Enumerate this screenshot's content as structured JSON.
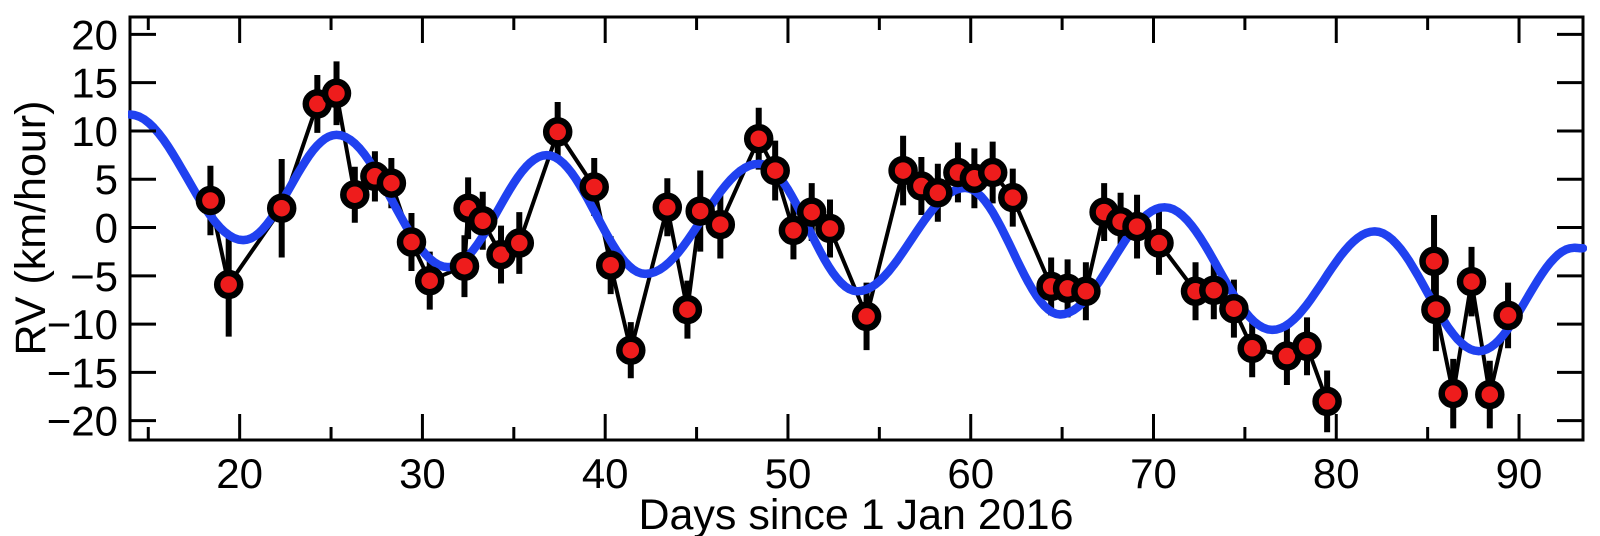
{
  "chart_data": {
    "type": "scatter",
    "subtype": "time-series with error bars and model curve",
    "title": "",
    "xlabel": "Days since 1 Jan 2016",
    "ylabel": "RV (km/hour)",
    "xlim": [
      14,
      93.5
    ],
    "ylim": [
      -22,
      21.8
    ],
    "grid": false,
    "legend": "none",
    "x_major_ticks": [
      20,
      30,
      40,
      50,
      60,
      70,
      80,
      90
    ],
    "x_tick_labels": [
      "20",
      "30",
      "40",
      "50",
      "60",
      "70",
      "80",
      "90"
    ],
    "x_minor_ticks": [
      15,
      25,
      35,
      45,
      55,
      65,
      75,
      85
    ],
    "y_major_ticks": [
      20,
      15,
      10,
      5,
      0,
      -5,
      -10,
      -15,
      -20
    ],
    "y_tick_labels": [
      "20",
      "15",
      "10",
      "5",
      "0",
      "−5",
      "−10",
      "−15",
      "−20"
    ],
    "colors": {
      "data_point_fill": "#ee1c1c",
      "data_point_edge": "#000000",
      "error_bar": "#000000",
      "connecting_line": "#000000",
      "model_curve": "#2041f0",
      "axis": "#000000",
      "background": "#ffffff"
    },
    "series": [
      {
        "name": "observed-rv-segment-1",
        "points": [
          {
            "day": 18.4,
            "rv": 2.8,
            "err": 3.6
          },
          {
            "day": 19.4,
            "rv": -5.9,
            "err": 5.4
          },
          {
            "day": 22.3,
            "rv": 2.0,
            "err": 5.1
          },
          {
            "day": 24.25,
            "rv": 12.8,
            "err": 3.0
          },
          {
            "day": 25.3,
            "rv": 13.9,
            "err": 3.3
          },
          {
            "day": 26.3,
            "rv": 3.4,
            "err": 2.9
          },
          {
            "day": 27.4,
            "rv": 5.3,
            "err": 2.6
          },
          {
            "day": 28.3,
            "rv": 4.6,
            "err": 2.6
          },
          {
            "day": 29.4,
            "rv": -1.5,
            "err": 3.0
          },
          {
            "day": 30.4,
            "rv": -5.5,
            "err": 3.0
          },
          {
            "day": 32.3,
            "rv": -4.0,
            "err": 3.2
          },
          {
            "day": 32.5,
            "rv": 2.0,
            "err": 3.2
          },
          {
            "day": 33.3,
            "rv": 0.7,
            "err": 3.0
          },
          {
            "day": 34.3,
            "rv": -2.8,
            "err": 3.0
          },
          {
            "day": 35.3,
            "rv": -1.6,
            "err": 3.2
          },
          {
            "day": 37.4,
            "rv": 9.9,
            "err": 3.1
          },
          {
            "day": 39.4,
            "rv": 4.2,
            "err": 3.0
          },
          {
            "day": 40.3,
            "rv": -3.9,
            "err": 3.0
          },
          {
            "day": 41.4,
            "rv": -12.7,
            "err": 2.9
          },
          {
            "day": 43.4,
            "rv": 2.1,
            "err": 3.0
          },
          {
            "day": 44.5,
            "rv": -8.5,
            "err": 3.0
          },
          {
            "day": 45.2,
            "rv": 1.7,
            "err": 4.2
          },
          {
            "day": 46.3,
            "rv": 0.3,
            "err": 3.5
          },
          {
            "day": 48.4,
            "rv": 9.2,
            "err": 3.2
          },
          {
            "day": 49.3,
            "rv": 5.9,
            "err": 3.1
          },
          {
            "day": 50.3,
            "rv": -0.3,
            "err": 3.0
          },
          {
            "day": 51.3,
            "rv": 1.6,
            "err": 3.0
          },
          {
            "day": 52.3,
            "rv": -0.1,
            "err": 3.0
          },
          {
            "day": 54.3,
            "rv": -9.2,
            "err": 3.5
          },
          {
            "day": 56.3,
            "rv": 5.9,
            "err": 3.6
          },
          {
            "day": 57.3,
            "rv": 4.3,
            "err": 3.0
          },
          {
            "day": 58.2,
            "rv": 3.6,
            "err": 3.0
          },
          {
            "day": 59.3,
            "rv": 5.7,
            "err": 3.1
          },
          {
            "day": 60.2,
            "rv": 5.1,
            "err": 3.1
          },
          {
            "day": 61.2,
            "rv": 5.7,
            "err": 3.2
          },
          {
            "day": 62.3,
            "rv": 3.1,
            "err": 3.0
          },
          {
            "day": 64.4,
            "rv": -6.1,
            "err": 3.0
          },
          {
            "day": 65.3,
            "rv": -6.3,
            "err": 3.0
          },
          {
            "day": 66.3,
            "rv": -6.6,
            "err": 3.0
          },
          {
            "day": 67.3,
            "rv": 1.6,
            "err": 3.0
          },
          {
            "day": 68.2,
            "rv": 0.6,
            "err": 3.0
          },
          {
            "day": 69.1,
            "rv": 0.1,
            "err": 3.3
          },
          {
            "day": 70.3,
            "rv": -1.6,
            "err": 3.3
          },
          {
            "day": 72.3,
            "rv": -6.6,
            "err": 3.0
          },
          {
            "day": 73.3,
            "rv": -6.5,
            "err": 3.0
          },
          {
            "day": 74.4,
            "rv": -8.4,
            "err": 3.0
          },
          {
            "day": 75.4,
            "rv": -12.5,
            "err": 3.0
          },
          {
            "day": 77.3,
            "rv": -13.3,
            "err": 3.0
          },
          {
            "day": 78.4,
            "rv": -12.3,
            "err": 3.0
          },
          {
            "day": 79.5,
            "rv": -18.0,
            "err": 3.2
          }
        ]
      },
      {
        "name": "observed-rv-segment-2",
        "points": [
          {
            "day": 85.35,
            "rv": -3.5,
            "err": 4.8
          },
          {
            "day": 85.45,
            "rv": -8.5,
            "err": 4.3
          },
          {
            "day": 86.4,
            "rv": -17.2,
            "err": 3.6
          },
          {
            "day": 87.4,
            "rv": -5.6,
            "err": 3.6
          },
          {
            "day": 88.4,
            "rv": -17.3,
            "err": 3.5
          },
          {
            "day": 89.4,
            "rv": -9.1,
            "err": 3.4
          }
        ]
      }
    ],
    "model_curve_extrema": [
      [
        14.0,
        11.7
      ],
      [
        20.2,
        -1.3
      ],
      [
        25.3,
        9.6
      ],
      [
        31.4,
        -4.1
      ],
      [
        36.8,
        7.5
      ],
      [
        42.2,
        -4.8
      ],
      [
        48.4,
        6.6
      ],
      [
        53.8,
        -6.6
      ],
      [
        59.7,
        4.1
      ],
      [
        64.9,
        -9.0
      ],
      [
        70.6,
        2.1
      ],
      [
        76.5,
        -10.6
      ],
      [
        82.1,
        -0.4
      ],
      [
        87.8,
        -12.8
      ],
      [
        93.0,
        -2.1
      ],
      [
        93.5,
        -2.15
      ]
    ]
  }
}
